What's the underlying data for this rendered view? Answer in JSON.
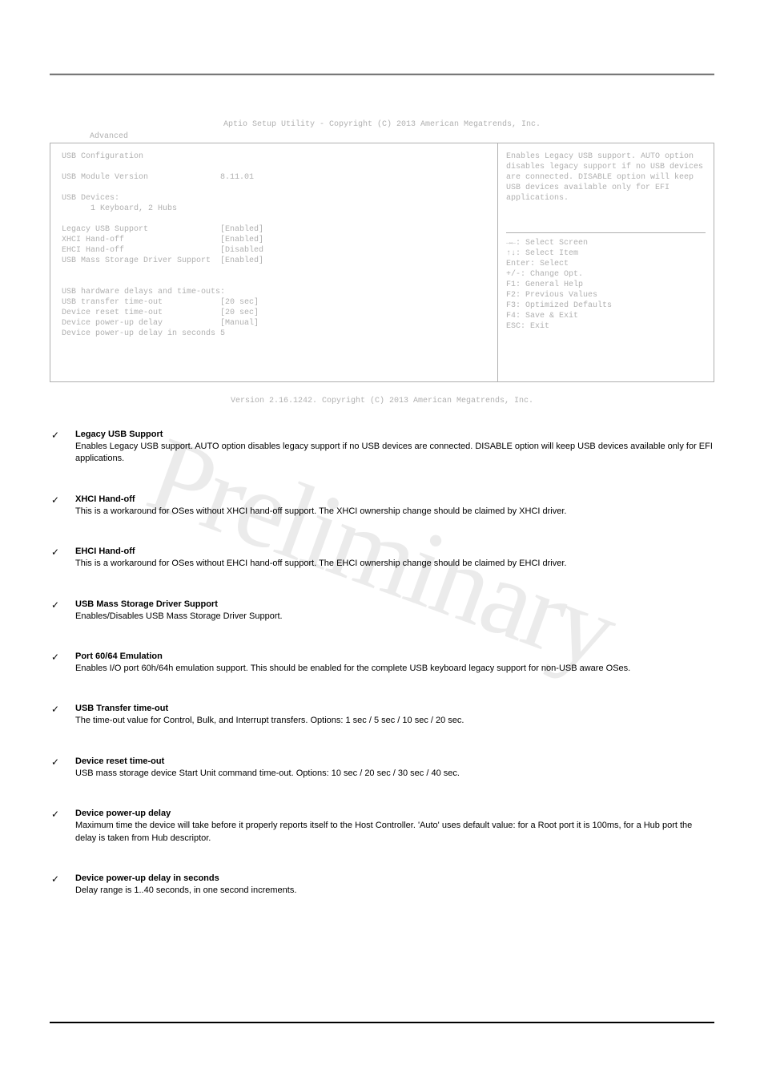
{
  "watermark": "Preliminary",
  "bios": {
    "header_text": "Aptio Setup Utility - Copyright (C) 2013 American Megatrends, Inc.",
    "tab": "Advanced",
    "footer_text": "Version 2.16.1242. Copyright (C) 2013 American Megatrends, Inc.",
    "left_panel": {
      "title": "USB Configuration",
      "module_label": "USB Module Version",
      "module_value": "8.11.01",
      "devices_label": "USB Devices:",
      "devices_value": "      1 Keyboard, 2 Hubs",
      "items": [
        {
          "label": "Legacy USB Support",
          "value": "[Enabled]"
        },
        {
          "label": "XHCI Hand-off",
          "value": "[Enabled]"
        },
        {
          "label": "EHCI Hand-off",
          "value": "[Disabled"
        },
        {
          "label": "USB Mass Storage Driver Support",
          "value": "[Enabled]"
        }
      ],
      "section2_title": "USB hardware delays and time-outs:",
      "items2": [
        {
          "label": "USB transfer time-out",
          "value": "[20 sec]"
        },
        {
          "label": "Device reset time-out",
          "value": "[20 sec]"
        },
        {
          "label": "Device power-up delay",
          "value": "[Manual]"
        },
        {
          "label": "Device power-up delay in seconds",
          "value": "5"
        }
      ]
    },
    "right_panel": {
      "help_text": "Enables Legacy USB support. AUTO option disables legacy support if no USB devices are connected. DISABLE option will keep USB devices available only for EFI applications.",
      "nav": [
        "→←: Select Screen",
        "↑↓: Select Item",
        "Enter: Select",
        "+/-: Change Opt.",
        "F1: General Help",
        "F2: Previous Values",
        "F3: Optimized Defaults",
        "F4: Save & Exit",
        "ESC: Exit"
      ]
    }
  },
  "settings": [
    {
      "name": "Legacy USB Support",
      "desc": "Enables Legacy USB support. AUTO option disables legacy support if no USB devices are connected. DISABLE option will keep USB devices available only for EFI applications."
    },
    {
      "name": "XHCI Hand-off",
      "desc": "This is a workaround for OSes without XHCI hand-off support. The XHCI ownership change should be claimed by XHCI driver."
    },
    {
      "name": "EHCI Hand-off",
      "desc": "This is a workaround for OSes without EHCI hand-off support. The EHCI ownership change should be claimed by EHCI driver."
    },
    {
      "name": "USB Mass Storage Driver Support",
      "desc": "Enables/Disables USB Mass Storage Driver Support."
    },
    {
      "name": "Port 60/64 Emulation",
      "desc": "Enables I/O port 60h/64h emulation support. This should be enabled for the complete USB keyboard legacy support for non-USB aware OSes."
    },
    {
      "name": "USB Transfer time-out",
      "desc": "The time-out value for Control, Bulk, and Interrupt transfers. Options: 1 sec / 5 sec / 10 sec / 20 sec."
    },
    {
      "name": "Device reset time-out",
      "desc": "USB mass storage device Start Unit command time-out. Options: 10 sec / 20 sec / 30 sec / 40 sec."
    },
    {
      "name": "Device power-up delay",
      "desc": "Maximum time the device will take before it properly reports itself to the Host Controller. 'Auto' uses default value: for a Root port it is 100ms, for a Hub port the delay is taken from Hub descriptor."
    },
    {
      "name": "Device power-up delay in seconds",
      "desc": "Delay range is 1..40 seconds, in one second increments."
    }
  ],
  "colors": {
    "background": "#ffffff",
    "text_primary": "#000000",
    "text_faded": "#b0b0b0",
    "border": "#b0b0b0",
    "watermark": "rgba(0,0,0,0.08)"
  }
}
